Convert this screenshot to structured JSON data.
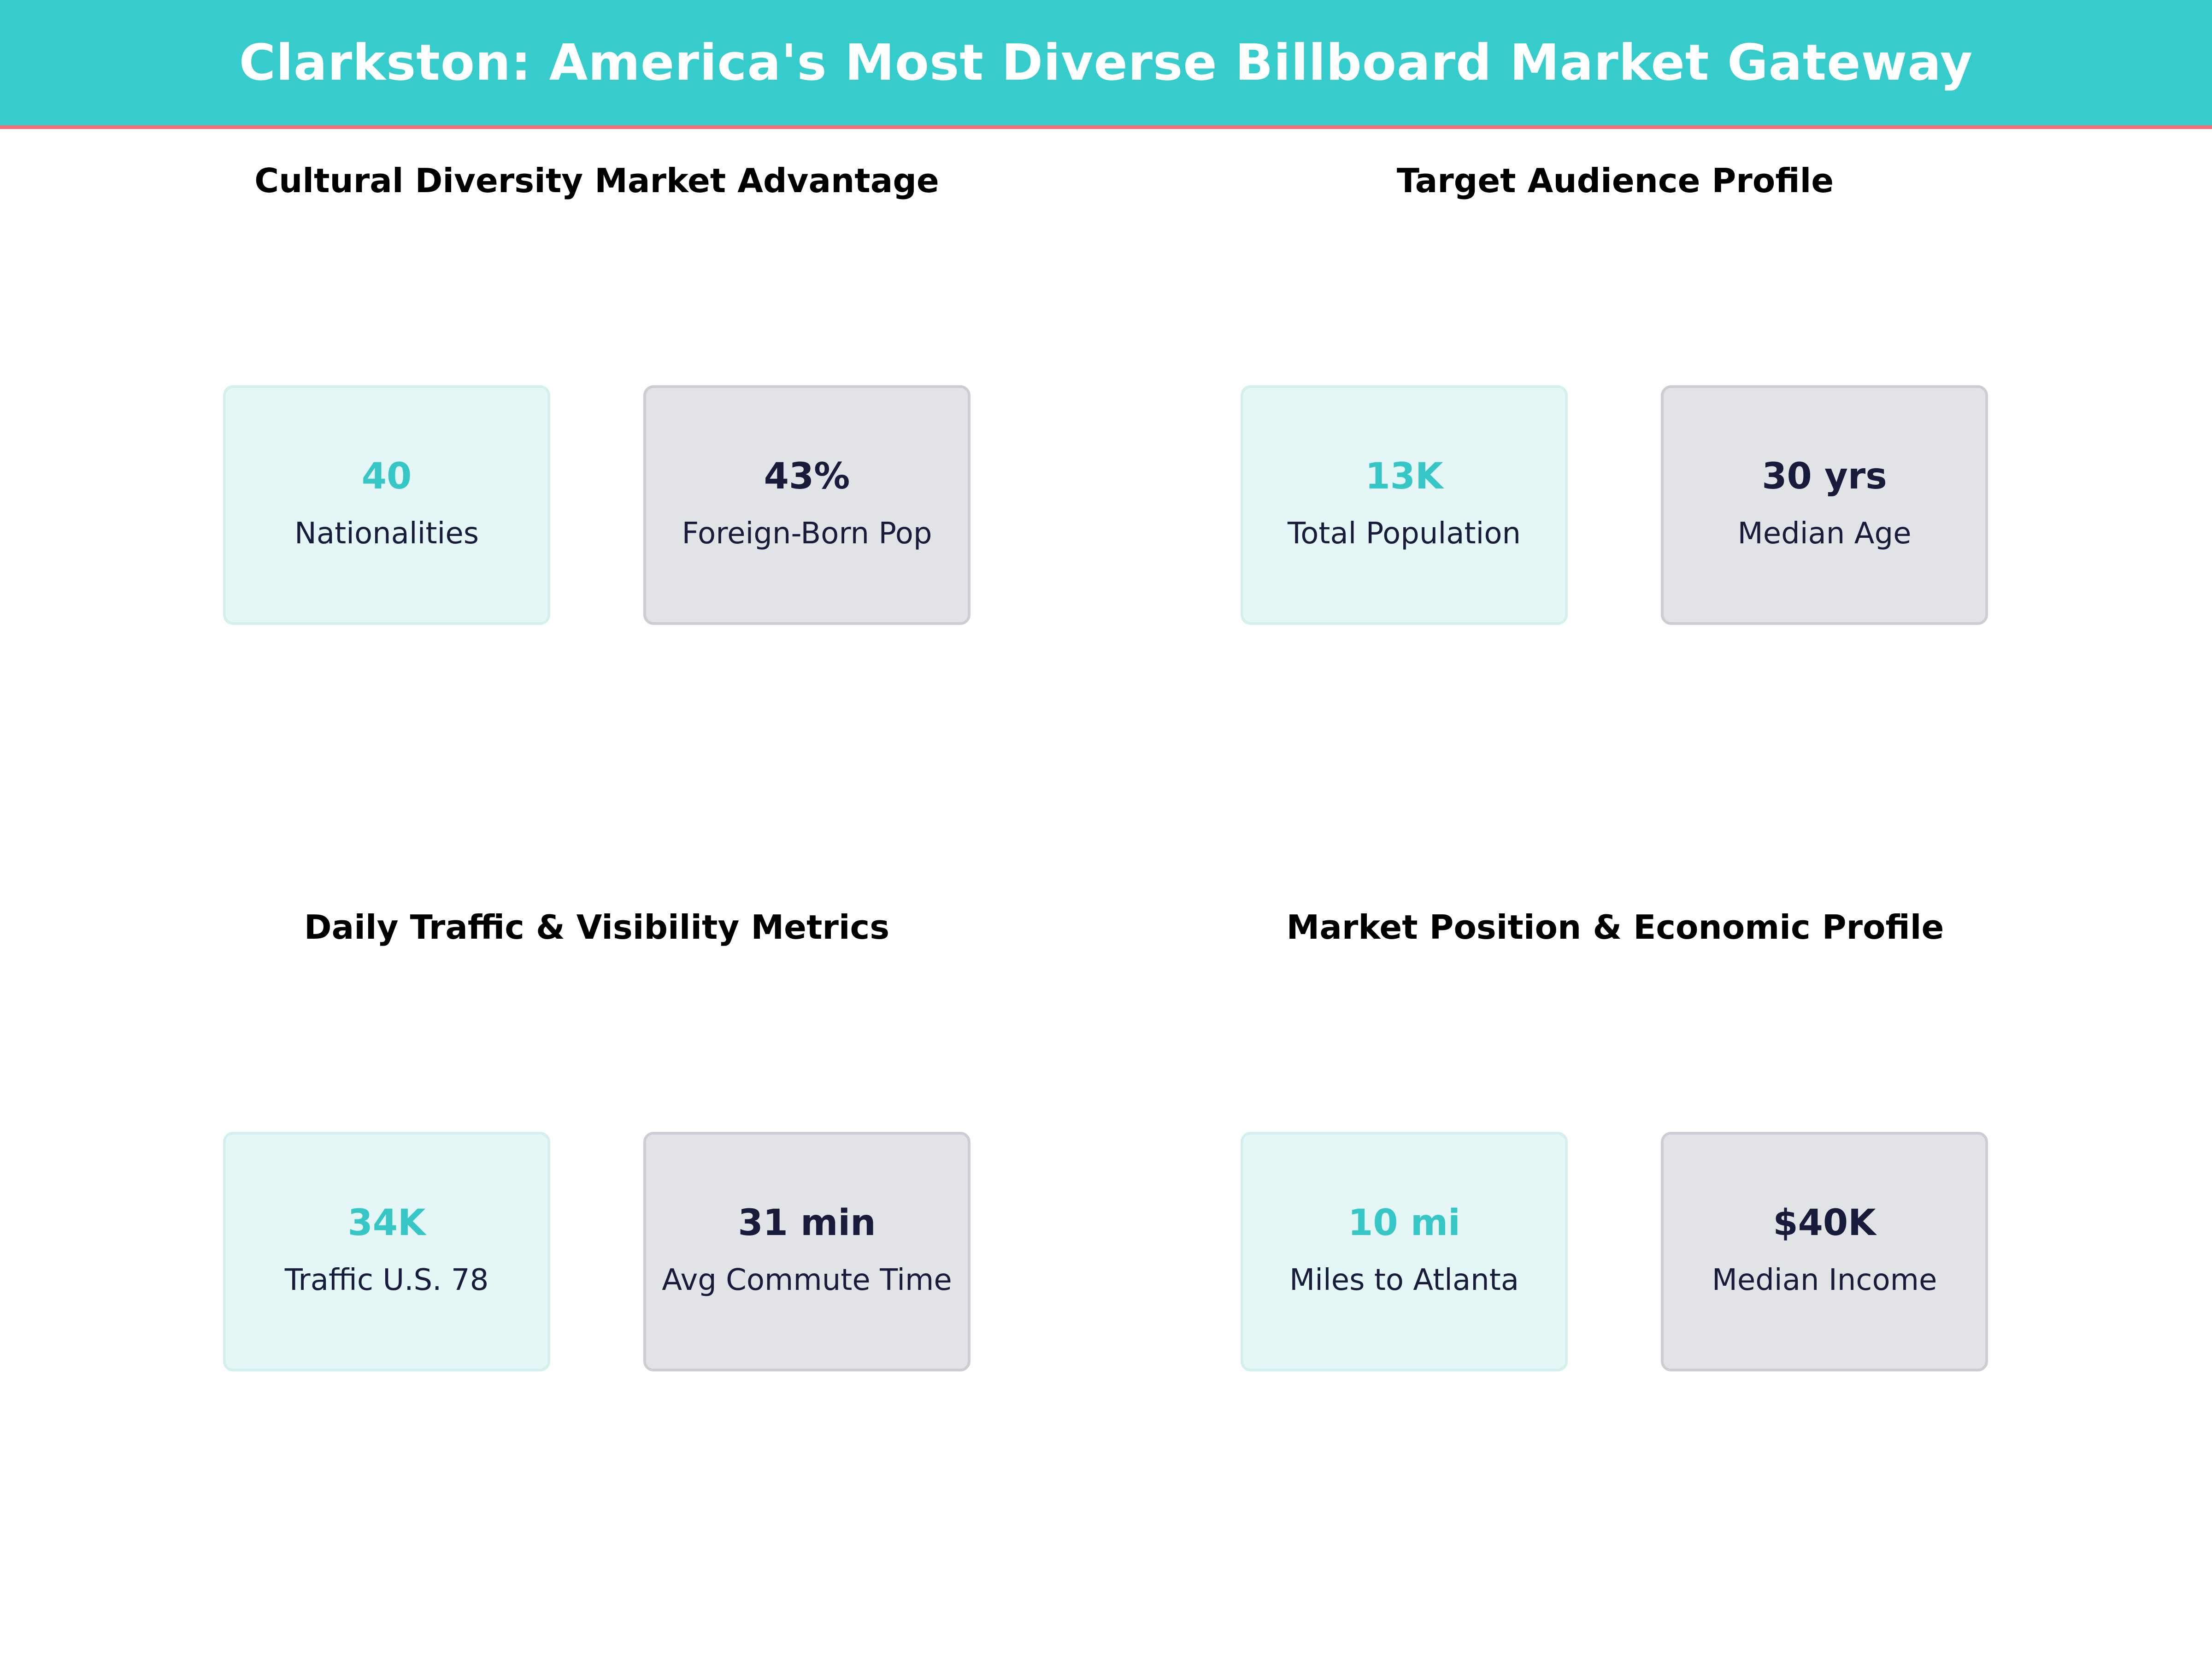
{
  "header": {
    "title": "Clarkston: America's Most Diverse Billboard Market Gateway"
  },
  "colors": {
    "accent_teal": "#36CCCC",
    "accent_red": "#EF6F7B",
    "teal_text": "#36C6C6",
    "navy_text": "#181B3A"
  },
  "panels": [
    {
      "title": "Cultural Diversity Market Advantage",
      "cards": [
        {
          "value": "40",
          "label": "Nationalities"
        },
        {
          "value": "43%",
          "label": "Foreign-Born Pop"
        }
      ]
    },
    {
      "title": "Target Audience Profile",
      "cards": [
        {
          "value": "13K",
          "label": "Total Population"
        },
        {
          "value": "30 yrs",
          "label": "Median Age"
        }
      ]
    },
    {
      "title": "Daily Traffic & Visibility Metrics",
      "cards": [
        {
          "value": "34K",
          "label": "Traffic U.S. 78"
        },
        {
          "value": "31 min",
          "label": "Avg Commute Time"
        }
      ]
    },
    {
      "title": "Market Position & Economic Profile",
      "cards": [
        {
          "value": "10 mi",
          "label": "Miles to Atlanta"
        },
        {
          "value": "$40K",
          "label": "Median Income"
        }
      ]
    }
  ]
}
